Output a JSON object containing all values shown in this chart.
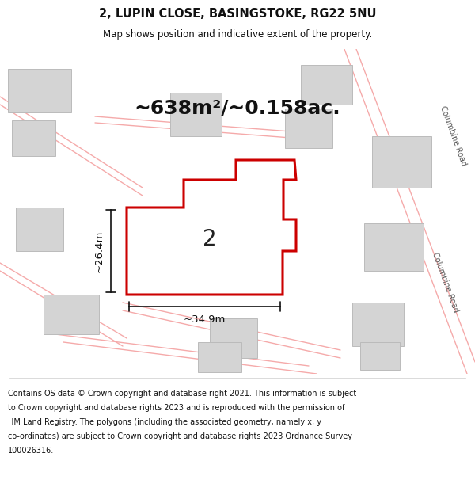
{
  "title_line1": "2, LUPIN CLOSE, BASINGSTOKE, RG22 5NU",
  "title_line2": "Map shows position and indicative extent of the property.",
  "area_label": "~638m²/~0.158ac.",
  "plot_number": "2",
  "dim_width": "~34.9m",
  "dim_height": "~26.4m",
  "road_label1": "Columbine Road",
  "road_label2": "Columbine Road",
  "footer_text_line1": "Contains OS data © Crown copyright and database right 2021. This information is subject",
  "footer_text_line2": "to Crown copyright and database rights 2023 and is reproduced with the permission of",
  "footer_text_line3": "HM Land Registry. The polygons (including the associated geometry, namely x, y",
  "footer_text_line4": "co-ordinates) are subject to Crown copyright and database rights 2023 Ordnance Survey",
  "footer_text_line5": "100026316.",
  "bg_color": "#ffffff",
  "plot_fill": "#ffffff",
  "plot_edge": "#cc0000",
  "building_fill": "#d4d4d4",
  "building_edge": "#bbbbbb",
  "road_line_color": "#f5aaaa",
  "road_line_color2": "#f5aaaa",
  "dim_line_color": "#111111",
  "title_fontsize": 10.5,
  "subtitle_fontsize": 8.5,
  "area_fontsize": 18,
  "plot_num_fontsize": 20,
  "dim_fontsize": 9.5,
  "road_label_fontsize": 7,
  "footer_fontsize": 7
}
